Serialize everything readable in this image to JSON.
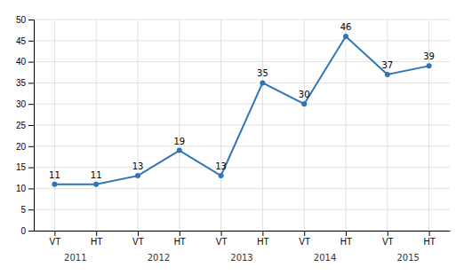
{
  "chart_data": {
    "type": "line",
    "categories": [
      "VT",
      "HT",
      "VT",
      "HT",
      "VT",
      "HT",
      "VT",
      "HT",
      "VT",
      "HT"
    ],
    "values": [
      11,
      11,
      13,
      19,
      13,
      35,
      30,
      46,
      37,
      39
    ],
    "annotations": [
      "2011",
      "2012",
      "2013",
      "2014",
      "2015"
    ],
    "color": "#2E75B6",
    "marker": "circle",
    "ylim": [
      0,
      50
    ],
    "yticks": [
      0,
      5,
      10,
      15,
      20,
      25,
      30,
      35,
      40,
      45,
      50
    ],
    "grid": true,
    "data_labels": true
  }
}
